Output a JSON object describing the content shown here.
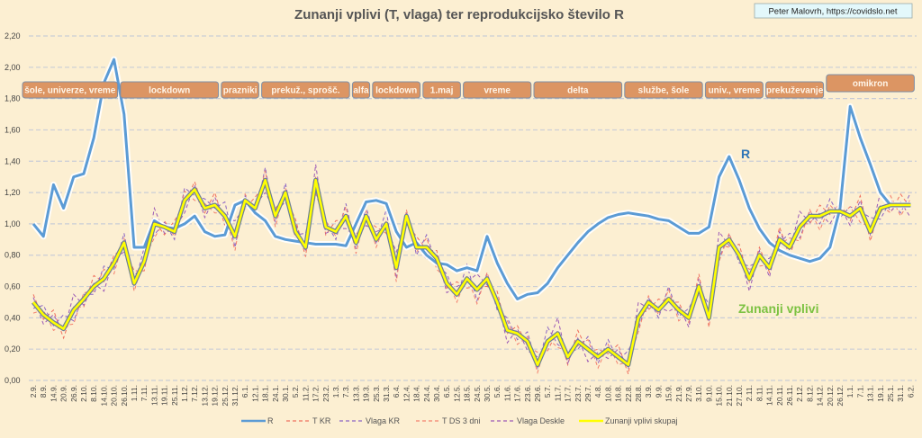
{
  "chart_data": {
    "type": "line",
    "title": "Zunanji vplivi (T, vlaga) ter reprodukcijsko število R",
    "credit": "Peter Malovrh, https://covidslo.net",
    "ylim": [
      0,
      2.2
    ],
    "yticks": [
      "0,00",
      "0,20",
      "0,40",
      "0,60",
      "0,80",
      "1,00",
      "1,20",
      "1,40",
      "1,60",
      "1,80",
      "2,00",
      "2,20"
    ],
    "ytick_values": [
      0,
      0.2,
      0.4,
      0.6,
      0.8,
      1.0,
      1.2,
      1.4,
      1.6,
      1.8,
      2.0,
      2.2
    ],
    "grid": true,
    "legend_position": "bottom",
    "categories": [
      "2.9.",
      "8.9.",
      "14.9.",
      "20.9.",
      "26.9.",
      "2.10.",
      "8.10.",
      "14.10.",
      "20.10.",
      "26.10.",
      "1.11.",
      "7.11.",
      "13.11.",
      "19.11.",
      "25.11.",
      "1.12.",
      "7.12.",
      "13.12.",
      "19.12.",
      "25.12.",
      "31.12.",
      "6.1.",
      "12.1.",
      "18.1.",
      "24.1.",
      "30.1.",
      "5.2.",
      "11.2.",
      "17.2.",
      "23.2.",
      "1.3.",
      "7.3.",
      "13.3.",
      "19.3.",
      "25.3.",
      "31.3.",
      "6.4.",
      "12.4.",
      "18.4.",
      "24.4.",
      "30.4.",
      "6.5.",
      "12.5.",
      "18.5.",
      "24.5.",
      "30.5.",
      "5.6.",
      "11.6.",
      "17.6.",
      "23.6.",
      "29.6.",
      "5.7.",
      "11.7.",
      "17.7.",
      "23.7.",
      "29.7.",
      "4.8.",
      "10.8.",
      "16.8.",
      "22.8.",
      "28.8.",
      "3.9.",
      "9.9.",
      "15.9.",
      "21.9.",
      "27.9.",
      "3.10.",
      "9.10.",
      "15.10.",
      "21.10.",
      "27.10.",
      "2.11.",
      "8.11.",
      "14.11.",
      "20.11.",
      "26.11.",
      "2.12.",
      "8.12.",
      "14.12.",
      "20.12.",
      "26.12.",
      "1.1.",
      "7.1.",
      "13.1.",
      "19.1.",
      "25.1.",
      "31.1.",
      "6.2."
    ],
    "series": [
      {
        "name": "R",
        "color": "#5b9bd5",
        "style": "solid",
        "values": [
          1.0,
          0.92,
          1.25,
          1.1,
          1.3,
          1.32,
          1.55,
          1.9,
          2.05,
          1.7,
          0.85,
          0.85,
          1.02,
          0.98,
          0.97,
          1.0,
          1.05,
          0.95,
          0.92,
          0.93,
          1.12,
          1.15,
          1.07,
          1.02,
          0.92,
          0.9,
          0.89,
          0.88,
          0.87,
          0.87,
          0.87,
          0.86,
          1.0,
          1.14,
          1.15,
          1.13,
          0.95,
          0.85,
          0.88,
          0.8,
          0.75,
          0.74,
          0.7,
          0.72,
          0.7,
          0.92,
          0.75,
          0.62,
          0.52,
          0.55,
          0.56,
          0.62,
          0.72,
          0.8,
          0.88,
          0.95,
          1.0,
          1.04,
          1.06,
          1.07,
          1.06,
          1.05,
          1.03,
          1.02,
          0.98,
          0.94,
          0.94,
          0.98,
          1.3,
          1.43,
          1.28,
          1.1,
          0.97,
          0.88,
          0.83,
          0.8,
          0.78,
          0.76,
          0.78,
          0.85,
          1.1,
          1.75,
          1.55,
          1.38,
          1.2,
          1.12,
          1.12,
          1.12
        ]
      },
      {
        "name": "T KR",
        "color": "#f0705f",
        "style": "dashed",
        "values": [
          0.55,
          0.39,
          0.45,
          0.27,
          0.47,
          0.47,
          0.67,
          0.63,
          0.8,
          0.85,
          0.7,
          0.7,
          1.02,
          0.93,
          1.02,
          1.13,
          1.27,
          1.07,
          1.2,
          0.99,
          0.94,
          1.1,
          1.17,
          1.26,
          1.1,
          1.17,
          1.03,
          0.79,
          1.3,
          0.93,
          1.02,
          1.03,
          0.93,
          1.02,
          0.98,
          0.94,
          0.74,
          1.0,
          0.92,
          0.83,
          0.83,
          0.59,
          0.63,
          0.59,
          0.6,
          0.6,
          0.57,
          0.3,
          0.35,
          0.22,
          0.18,
          0.19,
          0.32,
          0.1,
          0.32,
          0.18,
          0.2,
          0.17,
          0.23,
          0.04,
          0.42,
          0.45,
          0.52,
          0.5,
          0.5,
          0.37,
          0.68,
          0.34,
          0.87,
          0.85,
          0.87,
          0.63,
          0.85,
          0.69,
          0.98,
          0.79,
          1.0,
          1.0,
          1.12,
          1.06,
          1.13,
          1.02,
          1.18,
          0.89,
          1.12,
          1.07,
          1.19,
          1.1
        ]
      },
      {
        "name": "Vlaga KR",
        "color": "#8a63c4",
        "style": "dashed",
        "values": [
          0.46,
          0.48,
          0.35,
          0.42,
          0.38,
          0.55,
          0.55,
          0.73,
          0.71,
          0.94,
          0.6,
          0.85,
          0.93,
          1.01,
          0.9,
          1.23,
          1.18,
          1.16,
          1.1,
          1.14,
          0.85,
          1.18,
          1.05,
          1.36,
          1.01,
          1.26,
          0.93,
          0.94,
          1.21,
          1.01,
          0.9,
          1.13,
          0.84,
          1.11,
          0.88,
          1.09,
          0.65,
          1.08,
          0.8,
          0.93,
          0.74,
          0.68,
          0.53,
          0.74,
          0.51,
          0.68,
          0.45,
          0.4,
          0.26,
          0.31,
          0.08,
          0.34,
          0.23,
          0.18,
          0.2,
          0.28,
          0.11,
          0.26,
          0.13,
          0.19,
          0.33,
          0.53,
          0.4,
          0.6,
          0.41,
          0.46,
          0.58,
          0.49,
          0.78,
          0.93,
          0.75,
          0.73,
          0.76,
          0.78,
          0.88,
          0.94,
          0.91,
          1.08,
          1.0,
          1.16,
          1.04,
          1.11,
          1.08,
          1.04,
          1.03,
          1.15,
          1.07,
          1.2
        ]
      },
      {
        "name": "T DS 3 dni",
        "color": "#f4806e",
        "style": "dashed",
        "values": [
          0.43,
          0.45,
          0.32,
          0.35,
          0.36,
          0.56,
          0.57,
          0.71,
          0.68,
          0.91,
          0.57,
          0.78,
          0.91,
          1.02,
          0.92,
          1.21,
          1.15,
          1.13,
          1.07,
          1.07,
          0.83,
          1.19,
          1.07,
          1.34,
          0.98,
          1.23,
          0.9,
          0.87,
          1.19,
          1.02,
          0.92,
          1.11,
          0.81,
          1.08,
          0.85,
          1.02,
          0.63,
          1.09,
          0.82,
          0.91,
          0.71,
          0.65,
          0.5,
          0.67,
          0.49,
          0.69,
          0.47,
          0.38,
          0.23,
          0.28,
          0.05,
          0.27,
          0.21,
          0.19,
          0.22,
          0.26,
          0.08,
          0.23,
          0.1,
          0.12,
          0.31,
          0.54,
          0.42,
          0.58,
          0.38,
          0.43,
          0.55,
          0.42,
          0.76,
          0.94,
          0.77,
          0.71,
          0.73,
          0.74,
          0.87,
          0.91,
          0.89,
          1.09,
          0.96,
          1.12,
          1.05,
          1.11,
          1.01,
          0.98,
          1.07,
          1.18,
          1.05,
          1.16
        ]
      },
      {
        "name": "Vlaga Deskle",
        "color": "#9b59b6",
        "style": "dashed",
        "values": [
          0.53,
          0.36,
          0.42,
          0.31,
          0.55,
          0.48,
          0.62,
          0.57,
          0.78,
          0.82,
          0.67,
          0.74,
          1.1,
          0.94,
          0.97,
          1.07,
          1.25,
          1.04,
          1.17,
          1.03,
          1.02,
          1.11,
          1.12,
          1.2,
          1.08,
          1.14,
          1.0,
          0.83,
          1.38,
          0.94,
          0.97,
          0.97,
          0.91,
          0.99,
          0.95,
          0.98,
          0.82,
          1.01,
          0.87,
          0.77,
          0.81,
          0.56,
          0.6,
          0.63,
          0.68,
          0.61,
          0.52,
          0.24,
          0.33,
          0.19,
          0.15,
          0.23,
          0.4,
          0.11,
          0.27,
          0.12,
          0.18,
          0.14,
          0.2,
          0.08,
          0.5,
          0.46,
          0.47,
          0.44,
          0.48,
          0.34,
          0.65,
          0.38,
          0.95,
          0.86,
          0.82,
          0.57,
          0.83,
          0.66,
          0.95,
          0.83,
          1.08,
          1.01,
          1.07,
          1.0,
          1.11,
          0.99,
          1.15,
          0.93,
          1.2,
          1.08,
          1.14,
          1.04
        ]
      },
      {
        "name": "Zunanji vplivi skupaj",
        "color": "#ffff00",
        "style": "solid",
        "values": [
          0.5,
          0.42,
          0.37,
          0.33,
          0.45,
          0.52,
          0.6,
          0.65,
          0.75,
          0.88,
          0.62,
          0.76,
          1.0,
          0.98,
          0.95,
          1.15,
          1.22,
          1.1,
          1.12,
          1.05,
          0.92,
          1.15,
          1.1,
          1.28,
          1.05,
          1.2,
          0.95,
          0.85,
          1.28,
          0.98,
          0.95,
          1.05,
          0.88,
          1.05,
          0.9,
          1.0,
          0.72,
          1.05,
          0.85,
          0.85,
          0.78,
          0.62,
          0.55,
          0.65,
          0.58,
          0.65,
          0.5,
          0.32,
          0.3,
          0.25,
          0.1,
          0.25,
          0.3,
          0.15,
          0.25,
          0.2,
          0.15,
          0.2,
          0.15,
          0.1,
          0.4,
          0.5,
          0.45,
          0.52,
          0.45,
          0.4,
          0.6,
          0.4,
          0.85,
          0.9,
          0.8,
          0.65,
          0.8,
          0.72,
          0.9,
          0.85,
          0.98,
          1.05,
          1.05,
          1.08,
          1.08,
          1.05,
          1.1,
          0.95,
          1.1,
          1.12,
          1.12,
          1.12
        ]
      }
    ],
    "line_labels": [
      {
        "text": "R",
        "series": "R",
        "color": "#2e75b6"
      },
      {
        "text": "Zunanji vplivi",
        "series": "Zunanji vplivi skupaj",
        "color": "#7cc242"
      }
    ],
    "annotations": [
      {
        "text": "šole, univerze, vreme",
        "from": "2.9.",
        "to": "20.10."
      },
      {
        "text": "lockdown",
        "from": "26.10.",
        "to": "19.12."
      },
      {
        "text": "prazniki",
        "from": "25.12.",
        "to": "12.1."
      },
      {
        "text": "prekuž., sprošč.",
        "from": "18.1.",
        "to": "7.3."
      },
      {
        "text": "alfa",
        "from": "13.3.",
        "to": "19.3."
      },
      {
        "text": "lockdown",
        "from": "25.3.",
        "to": "18.4."
      },
      {
        "text": "1.maj",
        "from": "24.4.",
        "to": "12.5."
      },
      {
        "text": "vreme",
        "from": "18.5.",
        "to": "23.6."
      },
      {
        "text": "delta",
        "from": "29.6.",
        "to": "16.8."
      },
      {
        "text": "službe, šole",
        "from": "22.8.",
        "to": "3.10."
      },
      {
        "text": "univ., vreme",
        "from": "9.10.",
        "to": "8.11."
      },
      {
        "text": "prekuževanje",
        "from": "14.11.",
        "to": "14.12."
      },
      {
        "text": "omikron",
        "from": "20.12.",
        "to": "6.2."
      }
    ],
    "annotation_color": "#dc9563"
  }
}
